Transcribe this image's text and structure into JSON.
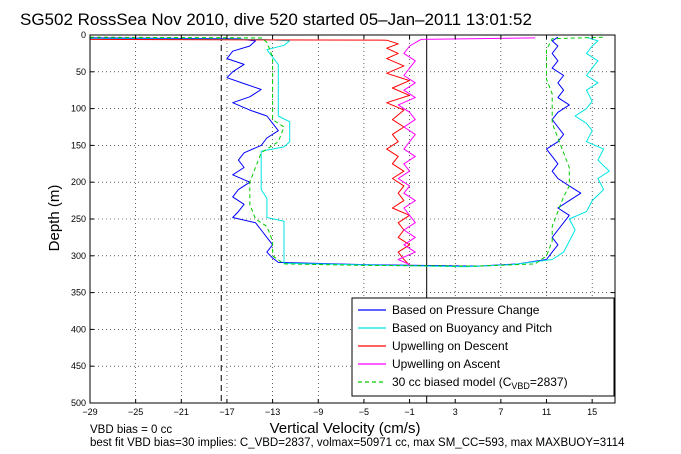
{
  "chart_data": {
    "type": "line",
    "title": "SG502 RossSea Nov 2010, dive 520 started 05–Jan–2011 13:01:52",
    "xlabel": "Vertical Velocity (cm/s)",
    "ylabel": "Depth (m)",
    "xlim": [
      -29,
      17
    ],
    "ylim": [
      500,
      0
    ],
    "y_reversed": true,
    "grid": true,
    "x_ticks": [
      -29,
      -25,
      -21,
      -17,
      -13,
      -9,
      -5,
      -1,
      3,
      7,
      11,
      15
    ],
    "x_tick_labels": [
      "−29",
      "−25",
      "−21",
      "−17",
      "−13",
      "−9",
      "−5",
      "−1",
      "3",
      "7",
      "11",
      "15"
    ],
    "y_ticks": [
      0,
      50,
      100,
      150,
      200,
      250,
      300,
      350,
      400,
      450,
      500
    ],
    "y_tick_labels": [
      "0",
      "50",
      "100",
      "150",
      "200",
      "250",
      "300",
      "350",
      "400",
      "450",
      "500"
    ],
    "legend_position": "bottom-right",
    "vlines": [
      {
        "x": -17.5,
        "style": "dashed",
        "color": "#000000"
      },
      {
        "x": 0.5,
        "style": "solid",
        "color": "#000000"
      }
    ],
    "series": [
      {
        "name": "Based on Pressure Change",
        "color": "#0000ff",
        "style": "solid",
        "points": [
          [
            -29,
            4
          ],
          [
            -16,
            5
          ],
          [
            -14.5,
            8
          ],
          [
            -15,
            15
          ],
          [
            -16.5,
            22
          ],
          [
            -17,
            32
          ],
          [
            -15.5,
            40
          ],
          [
            -16.5,
            50
          ],
          [
            -17,
            58
          ],
          [
            -15.5,
            66
          ],
          [
            -14,
            74
          ],
          [
            -15,
            84
          ],
          [
            -16.5,
            92
          ],
          [
            -15,
            102
          ],
          [
            -13.5,
            110
          ],
          [
            -13,
            120
          ],
          [
            -12.5,
            130
          ],
          [
            -13.5,
            140
          ],
          [
            -14,
            150
          ],
          [
            -15.5,
            160
          ],
          [
            -16,
            170
          ],
          [
            -15.5,
            180
          ],
          [
            -16.5,
            190
          ],
          [
            -15,
            200
          ],
          [
            -16,
            210
          ],
          [
            -16.5,
            220
          ],
          [
            -15.5,
            230
          ],
          [
            -16,
            240
          ],
          [
            -16.5,
            248
          ],
          [
            -14.5,
            255
          ],
          [
            -14,
            265
          ],
          [
            -13.5,
            275
          ],
          [
            -13,
            285
          ],
          [
            -13.5,
            295
          ],
          [
            -13,
            303
          ],
          [
            -12.5,
            309
          ],
          [
            -5,
            312
          ],
          [
            5,
            314
          ],
          [
            8.5,
            311
          ],
          [
            11,
            305
          ],
          [
            11.5,
            295
          ],
          [
            12,
            285
          ],
          [
            11.5,
            275
          ],
          [
            12,
            265
          ],
          [
            12.5,
            255
          ],
          [
            13,
            245
          ],
          [
            12,
            235
          ],
          [
            13,
            225
          ],
          [
            14,
            215
          ],
          [
            13,
            205
          ],
          [
            12,
            195
          ],
          [
            11.5,
            185
          ],
          [
            12,
            175
          ],
          [
            11.5,
            165
          ],
          [
            11,
            155
          ],
          [
            12,
            145
          ],
          [
            12.5,
            135
          ],
          [
            12,
            125
          ],
          [
            11.5,
            115
          ],
          [
            12,
            105
          ],
          [
            13,
            95
          ],
          [
            12,
            85
          ],
          [
            12.5,
            75
          ],
          [
            12,
            65
          ],
          [
            12.5,
            55
          ],
          [
            11.5,
            45
          ],
          [
            12,
            35
          ],
          [
            11.5,
            25
          ],
          [
            12,
            15
          ],
          [
            11.5,
            8
          ],
          [
            12,
            3
          ]
        ]
      },
      {
        "name": "Based on Buoyancy and Pitch",
        "color": "#00e5e5",
        "style": "solid",
        "points": [
          [
            -29,
            5
          ],
          [
            -14,
            6
          ],
          [
            -11.5,
            8
          ],
          [
            -12,
            14
          ],
          [
            -13.5,
            20
          ],
          [
            -13,
            30
          ],
          [
            -12.5,
            40
          ],
          [
            -12.5,
            55
          ],
          [
            -12.5,
            70
          ],
          [
            -12.5,
            85
          ],
          [
            -12.5,
            100
          ],
          [
            -12.5,
            110
          ],
          [
            -11.5,
            118
          ],
          [
            -11.5,
            130
          ],
          [
            -11.5,
            145
          ],
          [
            -12,
            152
          ],
          [
            -14,
            158
          ],
          [
            -14,
            175
          ],
          [
            -14,
            195
          ],
          [
            -14,
            210
          ],
          [
            -13.5,
            222
          ],
          [
            -13.5,
            235
          ],
          [
            -13.5,
            248
          ],
          [
            -12,
            253
          ],
          [
            -12,
            265
          ],
          [
            -12,
            280
          ],
          [
            -12,
            295
          ],
          [
            -12,
            306
          ],
          [
            -12,
            310
          ],
          [
            -3,
            313
          ],
          [
            4,
            315
          ],
          [
            8,
            312
          ],
          [
            11.5,
            305
          ],
          [
            12.5,
            295
          ],
          [
            13,
            280
          ],
          [
            13.5,
            265
          ],
          [
            13,
            250
          ],
          [
            14.5,
            240
          ],
          [
            15,
            225
          ],
          [
            16,
            210
          ],
          [
            15.5,
            195
          ],
          [
            16.5,
            185
          ],
          [
            15.5,
            170
          ],
          [
            16,
            155
          ],
          [
            14.5,
            145
          ],
          [
            15,
            130
          ],
          [
            14.5,
            120
          ],
          [
            13.5,
            110
          ],
          [
            14.5,
            100
          ],
          [
            15,
            90
          ],
          [
            14.5,
            75
          ],
          [
            15.5,
            65
          ],
          [
            14.5,
            55
          ],
          [
            15,
            45
          ],
          [
            15.5,
            35
          ],
          [
            14.5,
            25
          ],
          [
            15,
            15
          ],
          [
            15.5,
            8
          ],
          [
            14.5,
            3
          ]
        ]
      },
      {
        "name": "Upwelling on Descent",
        "color": "#ff0000",
        "style": "solid",
        "points": [
          [
            -29,
            6
          ],
          [
            -3,
            7
          ],
          [
            -2,
            12
          ],
          [
            -3,
            18
          ],
          [
            -2,
            25
          ],
          [
            -3,
            32
          ],
          [
            -1.5,
            42
          ],
          [
            -3,
            52
          ],
          [
            -1,
            62
          ],
          [
            -2.5,
            72
          ],
          [
            -1,
            82
          ],
          [
            -3,
            92
          ],
          [
            -1.5,
            102
          ],
          [
            -2.5,
            115
          ],
          [
            -1.5,
            125
          ],
          [
            -2.5,
            135
          ],
          [
            -2,
            145
          ],
          [
            -3,
            155
          ],
          [
            -2,
            165
          ],
          [
            -2.5,
            175
          ],
          [
            -1.5,
            185
          ],
          [
            -2.5,
            195
          ],
          [
            -1.5,
            205
          ],
          [
            -2,
            215
          ],
          [
            -1.5,
            225
          ],
          [
            -2.5,
            235
          ],
          [
            -1,
            245
          ],
          [
            -2,
            255
          ],
          [
            -1.5,
            265
          ],
          [
            -2,
            275
          ],
          [
            -1,
            285
          ],
          [
            -2,
            295
          ],
          [
            -1.5,
            305
          ],
          [
            -1,
            313
          ]
        ]
      },
      {
        "name": "Upwelling on Ascent",
        "color": "#ff00ff",
        "style": "solid",
        "points": [
          [
            -1,
            312
          ],
          [
            -2,
            305
          ],
          [
            -0.5,
            295
          ],
          [
            -1.5,
            285
          ],
          [
            -0.5,
            275
          ],
          [
            -1.5,
            265
          ],
          [
            -0.5,
            255
          ],
          [
            -1,
            245
          ],
          [
            -1.5,
            235
          ],
          [
            -0.5,
            225
          ],
          [
            -1.5,
            215
          ],
          [
            -1,
            205
          ],
          [
            -2,
            195
          ],
          [
            -1,
            185
          ],
          [
            -1.5,
            175
          ],
          [
            -0.5,
            165
          ],
          [
            -1.5,
            155
          ],
          [
            -1,
            145
          ],
          [
            -0.5,
            135
          ],
          [
            -1.5,
            125
          ],
          [
            -0.5,
            115
          ],
          [
            -1,
            105
          ],
          [
            -2,
            95
          ],
          [
            -0.5,
            85
          ],
          [
            -1.5,
            75
          ],
          [
            -0.5,
            65
          ],
          [
            -1.5,
            55
          ],
          [
            -1,
            45
          ],
          [
            -0.5,
            35
          ],
          [
            -1.5,
            25
          ],
          [
            -1,
            15
          ],
          [
            0,
            6
          ],
          [
            10,
            4
          ]
        ]
      },
      {
        "name": "30 cc biased model (C",
        "name_subscript": "VBD",
        "name_suffix": "=2837)",
        "color": "#00cc00",
        "style": "dashed",
        "points": [
          [
            -29,
            3
          ],
          [
            -14,
            4
          ],
          [
            -13.5,
            10
          ],
          [
            -13,
            30
          ],
          [
            -13,
            60
          ],
          [
            -13,
            100
          ],
          [
            -13,
            115
          ],
          [
            -12,
            125
          ],
          [
            -12.5,
            145
          ],
          [
            -14,
            160
          ],
          [
            -14.5,
            180
          ],
          [
            -15,
            200
          ],
          [
            -15,
            230
          ],
          [
            -14.5,
            250
          ],
          [
            -13.5,
            260
          ],
          [
            -13,
            280
          ],
          [
            -13,
            300
          ],
          [
            -12,
            311
          ],
          [
            -5,
            313
          ],
          [
            5,
            314
          ],
          [
            10,
            311
          ],
          [
            11,
            300
          ],
          [
            11.5,
            280
          ],
          [
            11.5,
            260
          ],
          [
            12,
            240
          ],
          [
            12.5,
            220
          ],
          [
            13,
            205
          ],
          [
            13,
            180
          ],
          [
            12.5,
            160
          ],
          [
            12,
            140
          ],
          [
            11.5,
            120
          ],
          [
            11.5,
            100
          ],
          [
            11.5,
            80
          ],
          [
            11,
            60
          ],
          [
            11,
            40
          ],
          [
            11,
            20
          ],
          [
            11.5,
            5
          ],
          [
            16,
            3
          ]
        ]
      }
    ]
  },
  "footer": {
    "line1": "VBD bias = 0 cc",
    "line2": "best fit VBD bias=30 implies: C_VBD=2837, volmax=50971 cc, max SM_CC=593, max MAXBUOY=3114"
  }
}
